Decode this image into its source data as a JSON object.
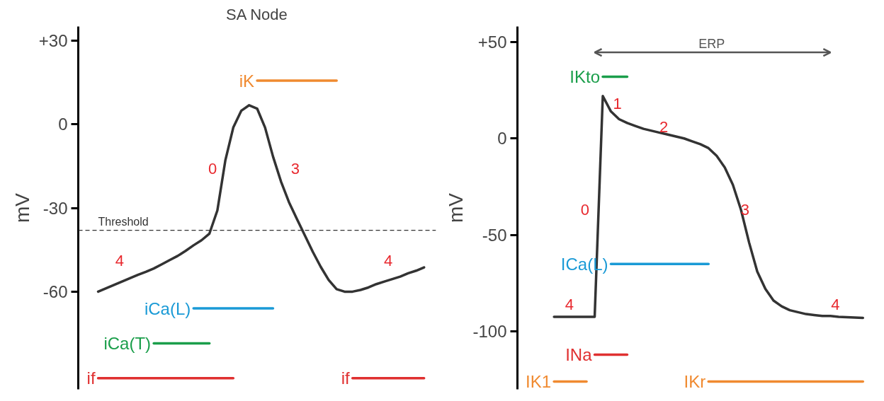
{
  "chart_data": [
    {
      "type": "line",
      "title": "SA Node",
      "ylabel": "mV",
      "tick_labels": "y",
      "grid": false,
      "categories": [
        null,
        null,
        null,
        null,
        null,
        null,
        null,
        null,
        null,
        null,
        null,
        null,
        null,
        null,
        null,
        null,
        null,
        null,
        null,
        null,
        null,
        null,
        null,
        null,
        null,
        null,
        null,
        null,
        null,
        null,
        null,
        null,
        null,
        null,
        null,
        null,
        null,
        null,
        null,
        null,
        null,
        null,
        null,
        null,
        null
      ],
      "ylim": [
        -95,
        35
      ],
      "yticks": [
        {
          "value": 30,
          "label": "+30"
        },
        0,
        -30,
        -60
      ],
      "ref_lines": [
        {
          "axis": "y",
          "value": -38,
          "label": "Threshold",
          "color": "#333333",
          "line_style": "dashed"
        }
      ],
      "annotations": [
        "0",
        "3",
        "4",
        "4"
      ],
      "series": [
        {
          "color": "#333333",
          "values": [
            null,
            null,
            -60,
            -58.8,
            -57.6,
            -56.4,
            -55.2,
            -54,
            -52.9,
            -51.7,
            -50.2,
            -48.7,
            -47.2,
            -45.4,
            -43.4,
            -41.6,
            -39.2,
            -30.9,
            -13,
            -1.2,
            4.8,
            6.8,
            5.6,
            -1.2,
            -11.6,
            -20.5,
            -27.9,
            -33.9,
            -39.8,
            -45.7,
            -51.1,
            -55.8,
            -59.1,
            -60,
            -60,
            -59.4,
            -58.5,
            -57.3,
            -56.4,
            -55.5,
            -54.6,
            -53.4,
            -52.5,
            -51.3,
            null
          ]
        },
        {
          "name": "iK",
          "color": "#f08a30",
          "values": [
            null,
            null,
            null,
            null,
            null,
            null,
            null,
            null,
            null,
            null,
            null,
            null,
            null,
            null,
            null,
            null,
            null,
            null,
            null,
            null,
            null,
            null,
            15.6,
            15.6,
            15.6,
            15.6,
            15.6,
            15.6,
            15.6,
            15.6,
            15.6,
            15.6,
            15.6,
            null,
            null,
            null,
            null,
            null,
            null,
            null,
            null,
            null,
            null,
            null,
            null
          ]
        },
        {
          "name": "iCa(L)",
          "color": "#1a9ad6",
          "values": [
            null,
            null,
            null,
            null,
            null,
            null,
            null,
            null,
            null,
            null,
            null,
            null,
            null,
            null,
            -66,
            -66,
            -66,
            -66,
            -66,
            -66,
            -66,
            -66,
            -66,
            -66,
            -66,
            null,
            null,
            null,
            null,
            null,
            null,
            null,
            null,
            null,
            null,
            null,
            null,
            null,
            null,
            null,
            null,
            null,
            null,
            null,
            null
          ]
        },
        {
          "name": "iCa(T)",
          "color": "#1a9e4a",
          "values": [
            null,
            null,
            null,
            null,
            null,
            null,
            null,
            null,
            null,
            -78.5,
            -78.5,
            -78.5,
            -78.5,
            -78.5,
            -78.5,
            -78.5,
            -78.5,
            null,
            null,
            null,
            null,
            null,
            null,
            null,
            null,
            null,
            null,
            null,
            null,
            null,
            null,
            null,
            null,
            null,
            null,
            null,
            null,
            null,
            null,
            null,
            null,
            null,
            null,
            null,
            null
          ]
        },
        {
          "name": "if",
          "color": "#e03030",
          "values": [
            null,
            null,
            -91,
            -91,
            -91,
            -91,
            -91,
            -91,
            -91,
            -91,
            -91,
            -91,
            -91,
            -91,
            -91,
            -91,
            -91,
            -91,
            -91,
            -91,
            null,
            null,
            null,
            null,
            null,
            null,
            null,
            null,
            null,
            null,
            null,
            null,
            null,
            null,
            null,
            null,
            null,
            null,
            null,
            null,
            null,
            null,
            null,
            null,
            null
          ]
        },
        {
          "name": "if",
          "color": "#e03030",
          "values": [
            null,
            null,
            null,
            null,
            null,
            null,
            null,
            null,
            null,
            null,
            null,
            null,
            null,
            null,
            null,
            null,
            null,
            null,
            null,
            null,
            null,
            null,
            null,
            null,
            null,
            null,
            null,
            null,
            null,
            null,
            null,
            null,
            null,
            null,
            -91,
            -91,
            -91,
            -91,
            -91,
            -91,
            -91,
            -91,
            -91,
            -91,
            null
          ]
        }
      ]
    },
    {
      "type": "line",
      "ylabel": "mV",
      "tick_labels": "y",
      "grid": false,
      "categories": [
        null,
        null,
        null,
        null,
        null,
        null,
        null,
        null,
        null,
        null,
        null,
        null,
        null,
        null,
        null,
        null,
        null,
        null,
        null,
        null,
        null,
        null,
        null,
        null,
        null,
        null,
        null,
        null,
        null,
        null,
        null,
        null,
        null,
        null,
        null,
        null,
        null,
        null,
        null,
        null,
        null
      ],
      "ylim": [
        -130,
        58
      ],
      "yticks": [
        {
          "value": 50,
          "label": "+50"
        },
        0,
        -50,
        -100
      ],
      "annotations": [
        "ERP",
        "1",
        "2",
        "3",
        "0",
        "4",
        "4"
      ],
      "series": [
        {
          "color": "#333333",
          "values": [
            null,
            -92.4,
            -92.4,
            -92.4,
            -92.4,
            -92.4,
            -92.4,
            22,
            14,
            10,
            8,
            6.5,
            5,
            4,
            3,
            2,
            1,
            0,
            -1.5,
            -3,
            -5,
            -9,
            -15,
            -24,
            -37,
            -54,
            -69,
            -78,
            -84,
            -87,
            -89,
            -90,
            -91,
            -91.5,
            -92,
            -92,
            -92.4,
            -92.6,
            -92.8,
            -93,
            null
          ]
        },
        {
          "name": "IKto",
          "color": "#1a9e4a",
          "values": [
            null,
            null,
            null,
            null,
            null,
            null,
            null,
            32,
            32,
            32,
            32,
            null,
            null,
            null,
            null,
            null,
            null,
            null,
            null,
            null,
            null,
            null,
            null,
            null,
            null,
            null,
            null,
            null,
            null,
            null,
            null,
            null,
            null,
            null,
            null,
            null,
            null,
            null,
            null,
            null,
            null
          ]
        },
        {
          "name": "ICa(L)",
          "color": "#1a9ad6",
          "values": [
            null,
            null,
            null,
            null,
            null,
            null,
            null,
            null,
            -65,
            -65,
            -65,
            -65,
            -65,
            -65,
            -65,
            -65,
            -65,
            -65,
            -65,
            -65,
            -65,
            null,
            null,
            null,
            null,
            null,
            null,
            null,
            null,
            null,
            null,
            null,
            null,
            null,
            null,
            null,
            null,
            null,
            null,
            null,
            null
          ]
        },
        {
          "name": "INa",
          "color": "#e03030",
          "values": [
            null,
            null,
            null,
            null,
            null,
            null,
            -112,
            -112,
            -112,
            -112,
            -112,
            null,
            null,
            null,
            null,
            null,
            null,
            null,
            null,
            null,
            null,
            null,
            null,
            null,
            null,
            null,
            null,
            null,
            null,
            null,
            null,
            null,
            null,
            null,
            null,
            null,
            null,
            null,
            null,
            null,
            null
          ]
        },
        {
          "name": "IK1",
          "color": "#f08a30",
          "values": [
            null,
            -126,
            -126,
            -126,
            -126,
            -126,
            null,
            null,
            null,
            null,
            null,
            null,
            null,
            null,
            null,
            null,
            null,
            null,
            null,
            null,
            null,
            null,
            null,
            null,
            null,
            null,
            null,
            null,
            null,
            null,
            null,
            null,
            null,
            null,
            null,
            null,
            null,
            null,
            null,
            null,
            null
          ]
        },
        {
          "name": "IKr",
          "color": "#f08a30",
          "values": [
            null,
            null,
            null,
            null,
            null,
            null,
            null,
            null,
            null,
            null,
            null,
            null,
            null,
            null,
            null,
            null,
            null,
            null,
            null,
            null,
            -126,
            -126,
            -126,
            -126,
            -126,
            -126,
            -126,
            -126,
            -126,
            -126,
            -126,
            -126,
            -126,
            -126,
            -126,
            -126,
            -126,
            -126,
            -126,
            -126,
            null
          ]
        }
      ]
    }
  ]
}
